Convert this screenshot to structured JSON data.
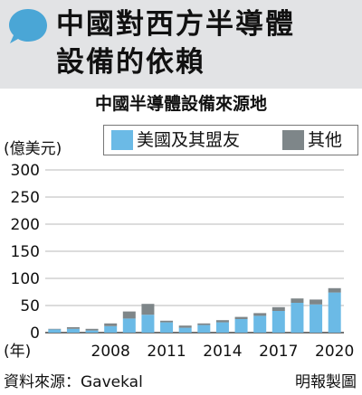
{
  "header": {
    "title_line1": "中國對西方半導體",
    "title_line2": "設備的依賴",
    "bubble_color": "#4aa6d6"
  },
  "chart_data": {
    "type": "bar",
    "stacked": true,
    "title": "中國半導體設備來源地",
    "ylabel": "(億美元)",
    "xlabel": "(年)",
    "ylim": [
      0,
      300
    ],
    "yticks": [
      0,
      50,
      100,
      150,
      200,
      250,
      300
    ],
    "grid": true,
    "legend_position": "top-right",
    "categories": [
      2005,
      2006,
      2007,
      2008,
      2009,
      2010,
      2011,
      2012,
      2013,
      2014,
      2015,
      2016,
      2017,
      2018,
      2019,
      2020
    ],
    "xticks": [
      2008,
      2011,
      2014,
      2017,
      2020
    ],
    "series": [
      {
        "name": "美國及其盟友",
        "color": "#6bbae6",
        "values": [
          6,
          7,
          4,
          12,
          26,
          33,
          19,
          9,
          14,
          19,
          25,
          31,
          40,
          55,
          52,
          74
        ]
      },
      {
        "name": "其他",
        "color": "#7e8689",
        "values": [
          1,
          3,
          3,
          5,
          13,
          20,
          3,
          4,
          3,
          4,
          4,
          5,
          7,
          8,
          9,
          8
        ]
      }
    ]
  },
  "footer": {
    "source": "資料來源：Gavekal",
    "credit": "明報製圖"
  }
}
